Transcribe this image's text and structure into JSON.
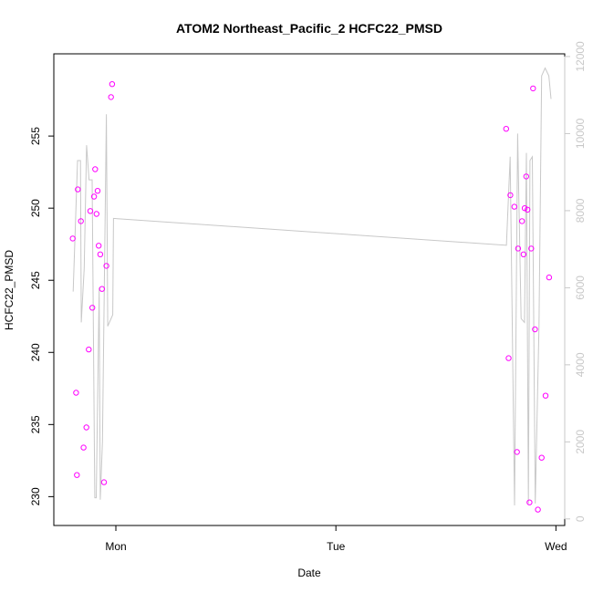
{
  "chart_data": {
    "type": "scatter",
    "title": "ATOM2 Northeast_Pacific_2 HCFC22_PMSD",
    "xlabel": "Date",
    "ylabel": "HCFC22_PMSD",
    "x_unit": "days",
    "x_ticks": [
      {
        "value": 1,
        "label": "Mon"
      },
      {
        "value": 2,
        "label": "Tue"
      },
      {
        "value": 3,
        "label": "Wed"
      }
    ],
    "y_ticks": [
      230,
      235,
      240,
      245,
      250,
      255
    ],
    "y2_ticks": [
      0,
      2000,
      4000,
      6000,
      8000,
      10000,
      12000
    ],
    "xlim": [
      0.718,
      3.04
    ],
    "ylim": [
      228.0,
      260.7
    ],
    "y2lim": [
      -170,
      12070
    ],
    "grid": false,
    "series": [
      {
        "kind": "points",
        "color": "#ff00ff",
        "axis": "left",
        "points": [
          [
            0.804,
            247.9
          ],
          [
            0.819,
            237.2
          ],
          [
            0.823,
            231.5
          ],
          [
            0.827,
            251.3
          ],
          [
            0.841,
            249.1
          ],
          [
            0.853,
            233.4
          ],
          [
            0.866,
            234.8
          ],
          [
            0.877,
            240.2
          ],
          [
            0.884,
            249.8
          ],
          [
            0.893,
            243.1
          ],
          [
            0.901,
            250.8
          ],
          [
            0.906,
            252.7
          ],
          [
            0.912,
            249.6
          ],
          [
            0.917,
            251.2
          ],
          [
            0.922,
            247.4
          ],
          [
            0.929,
            246.8
          ],
          [
            0.937,
            244.4
          ],
          [
            0.946,
            231.0
          ],
          [
            0.957,
            246.0
          ],
          [
            0.978,
            257.7
          ],
          [
            0.983,
            258.6
          ],
          [
            2.774,
            255.5
          ],
          [
            2.785,
            239.6
          ],
          [
            2.793,
            250.9
          ],
          [
            2.811,
            250.1
          ],
          [
            2.823,
            233.1
          ],
          [
            2.828,
            247.2
          ],
          [
            2.846,
            249.1
          ],
          [
            2.853,
            246.8
          ],
          [
            2.858,
            250.0
          ],
          [
            2.865,
            252.2
          ],
          [
            2.871,
            249.9
          ],
          [
            2.88,
            229.6
          ],
          [
            2.888,
            247.2
          ],
          [
            2.896,
            258.3
          ],
          [
            2.905,
            241.6
          ],
          [
            2.918,
            229.1
          ],
          [
            2.935,
            232.7
          ],
          [
            2.953,
            237.0
          ],
          [
            2.969,
            245.2
          ]
        ]
      },
      {
        "kind": "line",
        "color": "#c8c8c8",
        "axis": "right",
        "points": [
          [
            0.806,
            5900
          ],
          [
            0.826,
            9300
          ],
          [
            0.839,
            9300
          ],
          [
            0.843,
            5100
          ],
          [
            0.856,
            6500
          ],
          [
            0.867,
            9700
          ],
          [
            0.878,
            8800
          ],
          [
            0.892,
            8800
          ],
          [
            0.904,
            550
          ],
          [
            0.911,
            550
          ],
          [
            0.924,
            6000
          ],
          [
            0.929,
            500
          ],
          [
            0.939,
            2000
          ],
          [
            0.957,
            10500
          ],
          [
            0.963,
            5000
          ],
          [
            0.986,
            5300
          ],
          [
            0.989,
            7800
          ],
          [
            2.775,
            7100
          ],
          [
            2.792,
            9400
          ],
          [
            2.812,
            350
          ],
          [
            2.826,
            10000
          ],
          [
            2.842,
            5200
          ],
          [
            2.857,
            5100
          ],
          [
            2.866,
            9500
          ],
          [
            2.875,
            400
          ],
          [
            2.882,
            9300
          ],
          [
            2.893,
            9400
          ],
          [
            2.906,
            400
          ],
          [
            2.923,
            5000
          ],
          [
            2.935,
            11500
          ],
          [
            2.951,
            11700
          ],
          [
            2.968,
            11500
          ],
          [
            2.978,
            10900
          ]
        ]
      }
    ]
  }
}
